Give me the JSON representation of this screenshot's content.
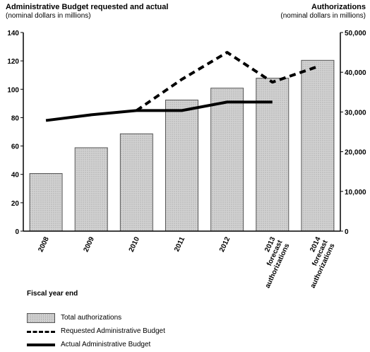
{
  "header": {
    "left_title": "Administrative Budget requested and actual",
    "left_subtitle": "(nominal dollars in millions)",
    "right_title": "Authorizations",
    "right_subtitle": "(nominal dollars in millions)"
  },
  "x_axis_title": "Fiscal year end",
  "legend": {
    "authorizations": "Total authorizations",
    "requested": "Requested Administrative Budget",
    "actual": "Actual Administrative Budget"
  },
  "chart_data": {
    "type": "bar",
    "categories": [
      "2008",
      "2009",
      "2010",
      "2011",
      "2012",
      "2013 forecast authorizations",
      "2014 forecast authorizations"
    ],
    "category_lines": [
      [
        "2008"
      ],
      [
        "2009"
      ],
      [
        "2010"
      ],
      [
        "2011"
      ],
      [
        "2012"
      ],
      [
        "2013",
        "forecast",
        "authorizations"
      ],
      [
        "2014",
        "forecast",
        "authorizations"
      ]
    ],
    "y_left": {
      "label": "Administrative Budget requested and actual",
      "ylim": [
        0,
        140
      ],
      "ticks": [
        0,
        20,
        40,
        60,
        80,
        100,
        120,
        140
      ]
    },
    "y_right": {
      "label": "Authorizations",
      "ylim": [
        0,
        50000
      ],
      "ticks": [
        0,
        10000,
        20000,
        30000,
        40000,
        50000
      ],
      "tick_labels": [
        "0",
        "10,000",
        "20,000",
        "30,000",
        "40,000",
        "50,000"
      ]
    },
    "series": [
      {
        "name": "Total authorizations",
        "type": "bar",
        "axis": "right",
        "values": [
          14500,
          21000,
          24500,
          33000,
          36000,
          38500,
          43000
        ]
      },
      {
        "name": "Requested Administrative Budget",
        "type": "line",
        "style": "dashed",
        "axis": "left",
        "values": [
          null,
          null,
          85,
          107,
          126,
          105,
          116
        ]
      },
      {
        "name": "Actual Administrative Budget",
        "type": "line",
        "style": "solid",
        "axis": "left",
        "values": [
          78,
          82,
          85,
          85,
          91,
          91,
          null
        ]
      }
    ],
    "grid": false,
    "legend_position": "bottom-left",
    "colors": {
      "bar_fill": "#cfcfcf",
      "bar_stroke": "#555555",
      "line": "#000000"
    }
  }
}
